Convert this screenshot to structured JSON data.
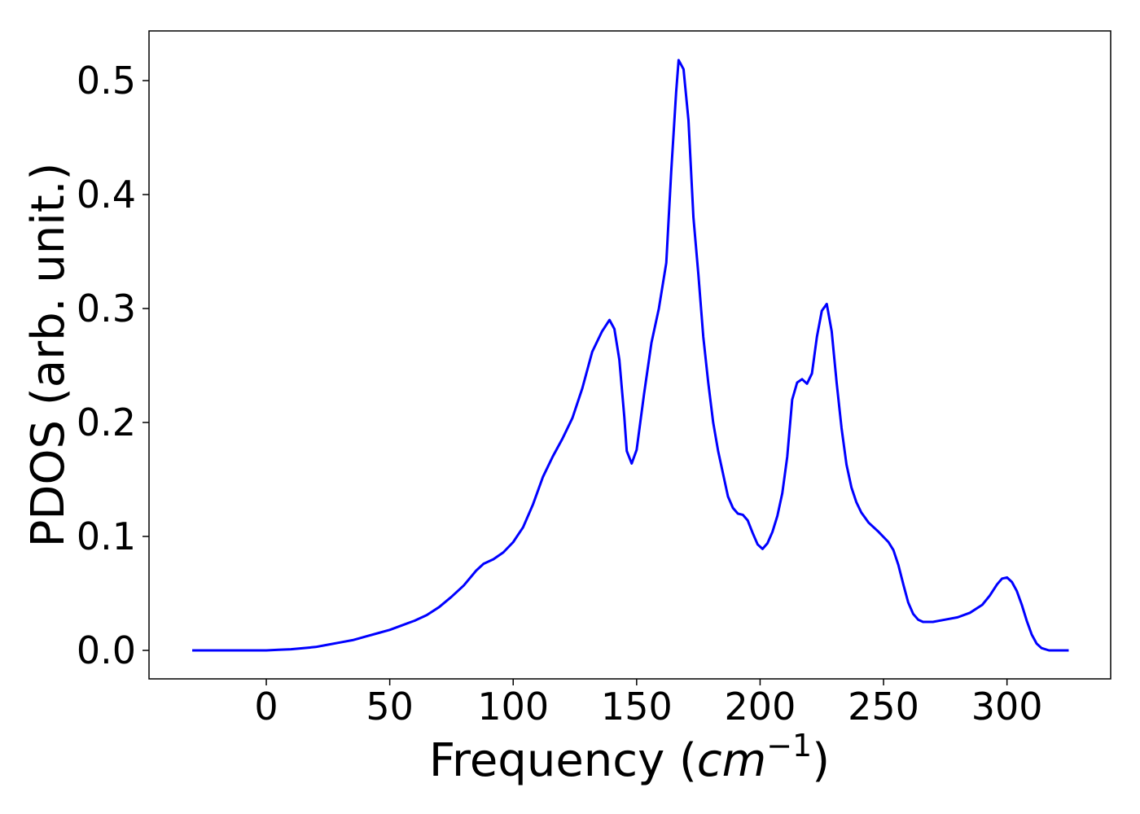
{
  "chart_data": {
    "type": "line",
    "xlabel": [
      "Frequency (",
      "cm",
      "−1",
      ")"
    ],
    "ylabel": "PDOS (arb. unit.)",
    "x": [
      -30,
      -20,
      -10,
      0,
      5,
      10,
      15,
      20,
      25,
      30,
      35,
      40,
      45,
      50,
      55,
      60,
      65,
      70,
      75,
      80,
      85,
      88,
      92,
      96,
      100,
      104,
      108,
      112,
      116,
      120,
      124,
      128,
      132,
      136,
      139,
      141,
      143,
      145,
      146,
      148,
      150,
      153,
      156,
      159,
      162,
      164,
      166,
      167,
      169,
      171,
      173,
      175,
      177,
      179,
      181,
      183,
      185,
      187,
      189,
      191,
      193,
      195,
      197,
      199,
      201,
      203,
      205,
      207,
      209,
      211,
      213,
      215,
      217,
      219,
      221,
      223,
      225,
      227,
      229,
      231,
      233,
      235,
      237,
      239,
      241,
      244,
      248,
      252,
      254,
      256,
      258,
      260,
      262,
      264,
      266,
      270,
      275,
      280,
      285,
      290,
      293,
      296,
      298,
      300,
      302,
      304,
      306,
      308,
      310,
      312,
      314,
      317,
      325
    ],
    "series": [
      {
        "name": "PDOS",
        "color": "#0000ff",
        "values": [
          0,
          0,
          0,
          0,
          0.0005,
          0.001,
          0.002,
          0.003,
          0.005,
          0.007,
          0.009,
          0.012,
          0.015,
          0.018,
          0.022,
          0.026,
          0.031,
          0.038,
          0.047,
          0.057,
          0.07,
          0.076,
          0.08,
          0.086,
          0.095,
          0.108,
          0.128,
          0.152,
          0.17,
          0.186,
          0.204,
          0.23,
          0.262,
          0.28,
          0.29,
          0.282,
          0.255,
          0.205,
          0.175,
          0.164,
          0.176,
          0.225,
          0.27,
          0.3,
          0.34,
          0.42,
          0.49,
          0.518,
          0.51,
          0.465,
          0.38,
          0.33,
          0.275,
          0.235,
          0.2,
          0.175,
          0.155,
          0.135,
          0.125,
          0.12,
          0.119,
          0.114,
          0.103,
          0.093,
          0.089,
          0.094,
          0.104,
          0.118,
          0.138,
          0.17,
          0.22,
          0.235,
          0.238,
          0.234,
          0.243,
          0.275,
          0.298,
          0.304,
          0.28,
          0.235,
          0.195,
          0.163,
          0.143,
          0.13,
          0.121,
          0.112,
          0.104,
          0.095,
          0.088,
          0.075,
          0.058,
          0.042,
          0.032,
          0.027,
          0.025,
          0.025,
          0.027,
          0.029,
          0.033,
          0.04,
          0.048,
          0.058,
          0.063,
          0.064,
          0.06,
          0.052,
          0.04,
          0.026,
          0.014,
          0.006,
          0.002,
          0,
          0
        ]
      }
    ],
    "xlim": [
      -47.5,
      342
    ],
    "ylim": [
      -0.025,
      0.5436
    ],
    "xticks": [
      0,
      50,
      100,
      150,
      200,
      250,
      300
    ],
    "yticks": [
      {
        "value": 0,
        "label": "0.0"
      },
      0.1,
      0.2,
      0.3,
      0.4,
      0.5
    ]
  }
}
